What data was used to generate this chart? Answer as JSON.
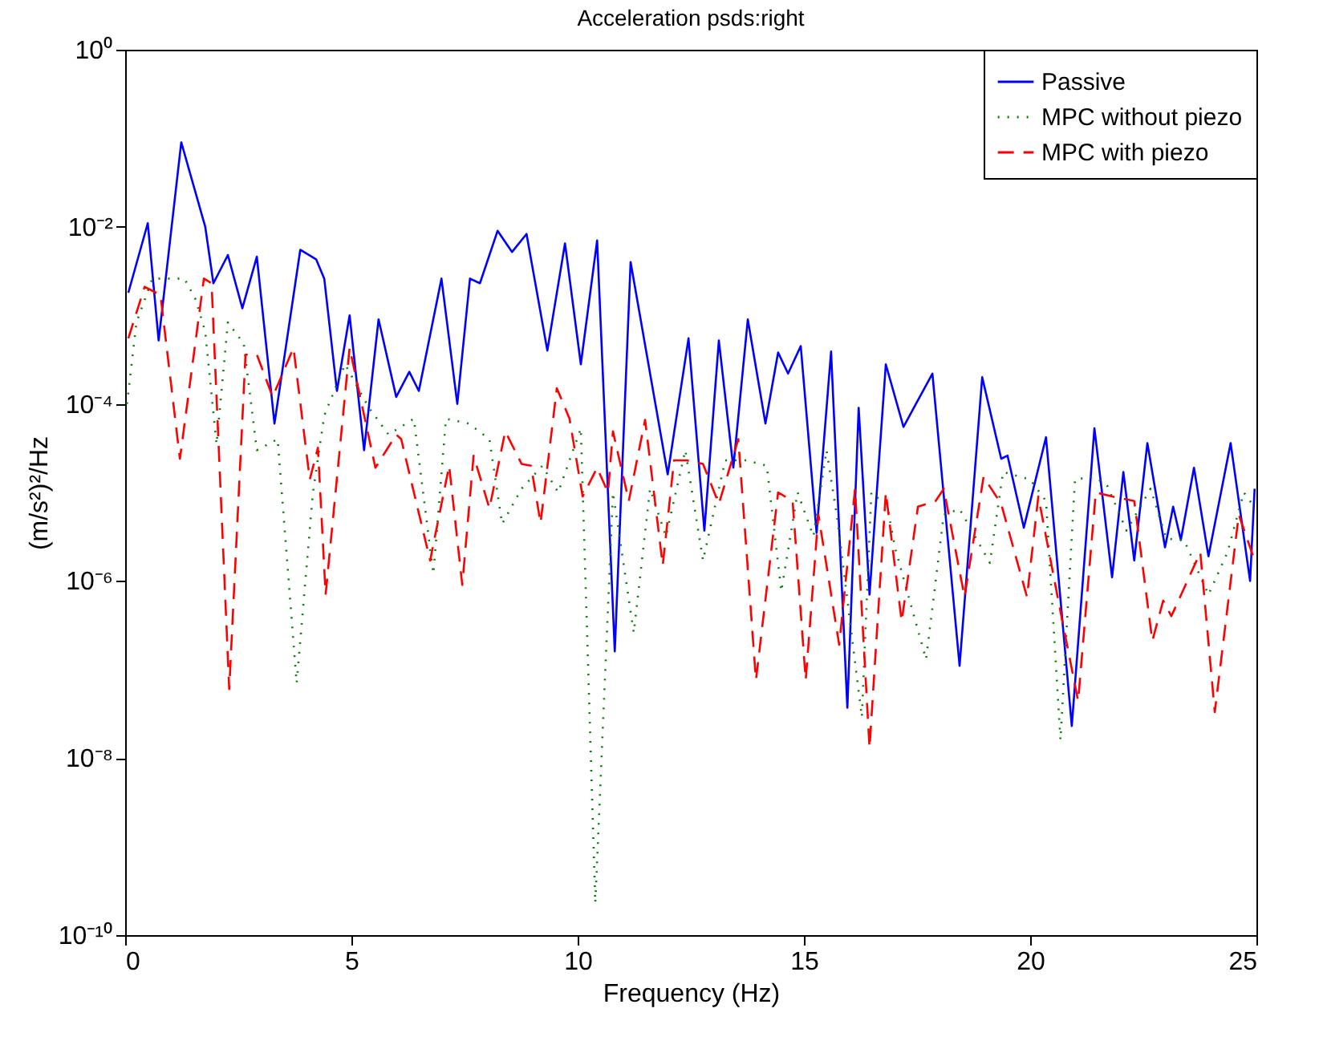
{
  "chart_data": {
    "type": "line",
    "title": "Acceleration psds:right",
    "xlabel": "Frequency (Hz)",
    "ylabel": "(m/s²)²/Hz",
    "log": true,
    "xlim": [
      0,
      25
    ],
    "xticks": [
      0,
      5,
      10,
      15,
      20,
      25
    ],
    "ylim": [
      1e-10,
      1
    ],
    "yticks": [
      {
        "value": 1e-10,
        "label": "10⁻¹⁰"
      },
      {
        "value": 1e-08,
        "label": "10⁻⁸"
      },
      {
        "value": 1e-06,
        "label": "10⁻⁶"
      },
      {
        "value": 0.0001,
        "label": "10⁻⁴"
      },
      {
        "value": 0.01,
        "label": "10⁻²"
      },
      {
        "value": 1,
        "label": "10⁰"
      }
    ],
    "grid": false,
    "legend": "top right",
    "marker": "none",
    "series": [
      {
        "name": "Passive",
        "color": "#0000ff",
        "line_style": "solid",
        "x": [
          0.07,
          0.5,
          0.74,
          1.24,
          1.77,
          1.95,
          2.27,
          2.59,
          2.91,
          3.3,
          3.87,
          4.22,
          4.4,
          4.68,
          4.96,
          5.28,
          5.6,
          5.99,
          6.28,
          6.49,
          6.99,
          7.34,
          7.62,
          7.84,
          8.23,
          8.55,
          8.87,
          9.33,
          9.72,
          10.07,
          10.43,
          10.82,
          11.17,
          11.99,
          12.45,
          12.8,
          13.12,
          13.44,
          13.76,
          14.15,
          14.43,
          14.65,
          14.93,
          15.28,
          15.6,
          15.96,
          16.21,
          16.45,
          16.81,
          17.2,
          17.84,
          18.44,
          18.94,
          19.36,
          19.5,
          19.86,
          20.35,
          20.92,
          21.42,
          21.81,
          22.06,
          22.3,
          22.59,
          22.98,
          23.16,
          23.33,
          23.62,
          23.94,
          24.43,
          24.86,
          24.96
        ],
        "values": [
          0.0018,
          0.011,
          0.00052,
          0.09,
          0.01,
          0.0023,
          0.0048,
          0.0012,
          0.0046,
          6e-05,
          0.0055,
          0.0043,
          0.0026,
          0.00014,
          0.001,
          3e-05,
          0.0009,
          0.00012,
          0.00023,
          0.00014,
          0.0026,
          0.0001,
          0.0026,
          0.0023,
          0.009,
          0.0052,
          0.0083,
          0.0004,
          0.0065,
          0.00028,
          0.007,
          1.6e-07,
          0.004,
          1.6e-05,
          0.00055,
          3.7e-06,
          0.00052,
          1.9e-05,
          0.0009,
          6e-05,
          0.00038,
          0.00022,
          0.00045,
          3.5e-06,
          0.00039,
          3.7e-08,
          9e-05,
          7e-07,
          0.00028,
          5.5e-05,
          0.00022,
          1.1e-07,
          0.0002,
          2.4e-05,
          2.6e-05,
          4e-06,
          4.2e-05,
          2.3e-08,
          5.3e-05,
          1.1e-06,
          1.7e-05,
          1.7e-06,
          3.6e-05,
          2.4e-06,
          6.9e-06,
          2.9e-06,
          1.9e-05,
          1.9e-06,
          3.6e-05,
          1e-06,
          1.1e-05
        ]
      },
      {
        "name": "MPC without piezo",
        "color": "#008000",
        "line_style": "dotted",
        "x": [
          0.04,
          0.25,
          0.6,
          1.31,
          1.56,
          1.77,
          2.02,
          2.27,
          2.62,
          2.91,
          3.37,
          3.79,
          4.15,
          4.4,
          4.86,
          5.39,
          5.82,
          6.38,
          6.81,
          7.09,
          7.59,
          8.05,
          8.33,
          8.76,
          9.22,
          9.57,
          10.07,
          10.39,
          10.78,
          11.24,
          11.6,
          11.95,
          12.38,
          12.77,
          13.26,
          13.72,
          14.18,
          14.5,
          14.86,
          15.21,
          15.5,
          15.74,
          16.28,
          16.49,
          16.84,
          17.02,
          17.7,
          18.09,
          18.44,
          19.11,
          19.4,
          20.0,
          20.35,
          20.67,
          20.99,
          21.42,
          21.7,
          22.13,
          22.66,
          23.01,
          23.4,
          23.94,
          24.36,
          24.72,
          24.96
        ],
        "values": [
          0.0001,
          0.00083,
          0.0026,
          0.0026,
          0.0015,
          0.00065,
          3.5e-05,
          0.00083,
          0.00048,
          3e-05,
          4e-05,
          7e-08,
          1e-05,
          7.4e-05,
          0.00028,
          9e-05,
          4.5e-05,
          6.8e-05,
          1.2e-06,
          6.8e-05,
          6e-05,
          4e-05,
          4.4e-06,
          1.1e-05,
          2e-05,
          1e-05,
          5.3e-05,
          2.3e-10,
          1e-05,
          2.6e-07,
          1.1e-05,
          3.2e-06,
          3e-05,
          1.7e-06,
          2.3e-05,
          2.3e-05,
          2e-05,
          7.6e-07,
          1e-05,
          3.2e-06,
          3e-05,
          5e-06,
          2.9e-08,
          1e-05,
          7e-06,
          2.3e-06,
          1.3e-07,
          5.6e-06,
          6.5e-06,
          1.6e-06,
          1.7e-05,
          1.4e-05,
          8e-06,
          1.6e-08,
          1.4e-05,
          1.5e-05,
          1.2e-05,
          3.7e-06,
          1.1e-05,
          3e-06,
          2.9e-06,
          7e-07,
          2.1e-06,
          1e-05,
          6.8e-06
        ]
      },
      {
        "name": "MPC with piezo",
        "color": "#ff0000",
        "line_style": "dashed",
        "x": [
          0.07,
          0.43,
          0.78,
          1.21,
          1.74,
          1.91,
          2.3,
          2.66,
          2.91,
          3.26,
          3.72,
          4.08,
          4.26,
          4.43,
          4.96,
          5.53,
          5.99,
          6.1,
          6.74,
          7.16,
          7.45,
          7.7,
          8.05,
          8.4,
          8.76,
          8.97,
          9.18,
          9.54,
          9.82,
          10.11,
          10.43,
          10.67,
          10.78,
          11.13,
          11.49,
          11.88,
          12.13,
          12.41,
          12.77,
          13.12,
          13.55,
          13.94,
          14.43,
          14.75,
          15.04,
          15.32,
          15.78,
          16.13,
          16.45,
          16.81,
          17.16,
          17.52,
          17.91,
          18.09,
          18.55,
          18.97,
          19.36,
          19.93,
          20.18,
          20.64,
          21.06,
          21.45,
          21.81,
          22.3,
          22.7,
          22.94,
          23.12,
          23.76,
          24.08,
          24.61,
          24.93
        ],
        "values": [
          0.00055,
          0.0021,
          0.0017,
          2.4e-05,
          0.0026,
          0.0023,
          6e-08,
          0.00036,
          0.00036,
          0.00012,
          0.00043,
          1.4e-05,
          3.2e-05,
          7e-07,
          0.00043,
          1.9e-05,
          4.5e-05,
          4e-05,
          1.7e-06,
          2e-05,
          9e-07,
          2.6e-05,
          6.6e-06,
          4.9e-05,
          2.1e-05,
          2e-05,
          4.5e-06,
          0.00015,
          6.8e-05,
          9e-06,
          1.9e-05,
          1e-05,
          4.9e-05,
          8e-06,
          6.6e-05,
          1.5e-06,
          2.3e-05,
          2.3e-05,
          2.1e-05,
          7.4e-06,
          4e-05,
          7.6e-08,
          1e-05,
          8e-06,
          7.6e-08,
          5.6e-06,
          1.9e-07,
          1.1e-05,
          1.3e-08,
          1e-05,
          3.5e-07,
          6.9e-06,
          8e-06,
          1.1e-05,
          6.6e-07,
          1.5e-05,
          7.4e-06,
          6.6e-07,
          9e-06,
          5.4e-07,
          4.4e-08,
          1e-05,
          9e-06,
          8e-06,
          2.1e-07,
          6e-07,
          4e-07,
          2.1e-06,
          3.3e-08,
          5.6e-06,
          1.9e-06
        ]
      }
    ]
  }
}
